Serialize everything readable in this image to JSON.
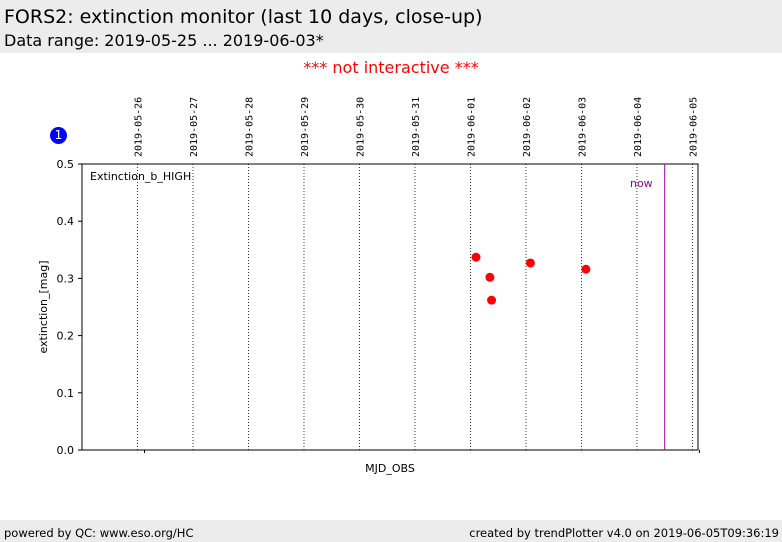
{
  "header": {
    "title": "FORS2: extinction monitor (last 10 days, close-up)",
    "subtitle": "Data range: 2019-05-25 ... 2019-06-03*"
  },
  "notice": "*** not interactive ***",
  "badge": "1",
  "footer": {
    "left": "powered by QC: www.eso.org/HC",
    "right": "created by trendPlotter v4.0 on 2019-06-05T09:36:19"
  },
  "colors": {
    "points": "#ff0000",
    "now_line": "#990099",
    "notice": "#ff0000",
    "badge": "#0000ff"
  },
  "chart_data": {
    "type": "scatter",
    "title": "",
    "xlabel": "MJD_OBS",
    "ylabel": "extinction_[mag]",
    "annotation": "Extinction_b_HIGH",
    "now_label": "now",
    "now_date": "2019-06-04.5",
    "xlim": [
      "2019-05-25.0",
      "2019-06-05.1"
    ],
    "ylim": [
      0.0,
      0.5
    ],
    "yticks": [
      "0.0",
      "0.1",
      "0.2",
      "0.3",
      "0.4",
      "0.5"
    ],
    "date_ticks": [
      "2019-05-26",
      "2019-05-27",
      "2019-05-28",
      "2019-05-29",
      "2019-05-30",
      "2019-05-31",
      "2019-06-01",
      "2019-06-02",
      "2019-06-03",
      "2019-06-04",
      "2019-06-05"
    ],
    "grid": "vertical dotted at each date",
    "series": [
      {
        "x": [
          "2019-06-01.10",
          "2019-06-01.35",
          "2019-06-01.38",
          "2019-06-02.08",
          "2019-06-03.08"
        ],
        "y": [
          0.337,
          0.302,
          0.262,
          0.327,
          0.316
        ]
      }
    ]
  }
}
